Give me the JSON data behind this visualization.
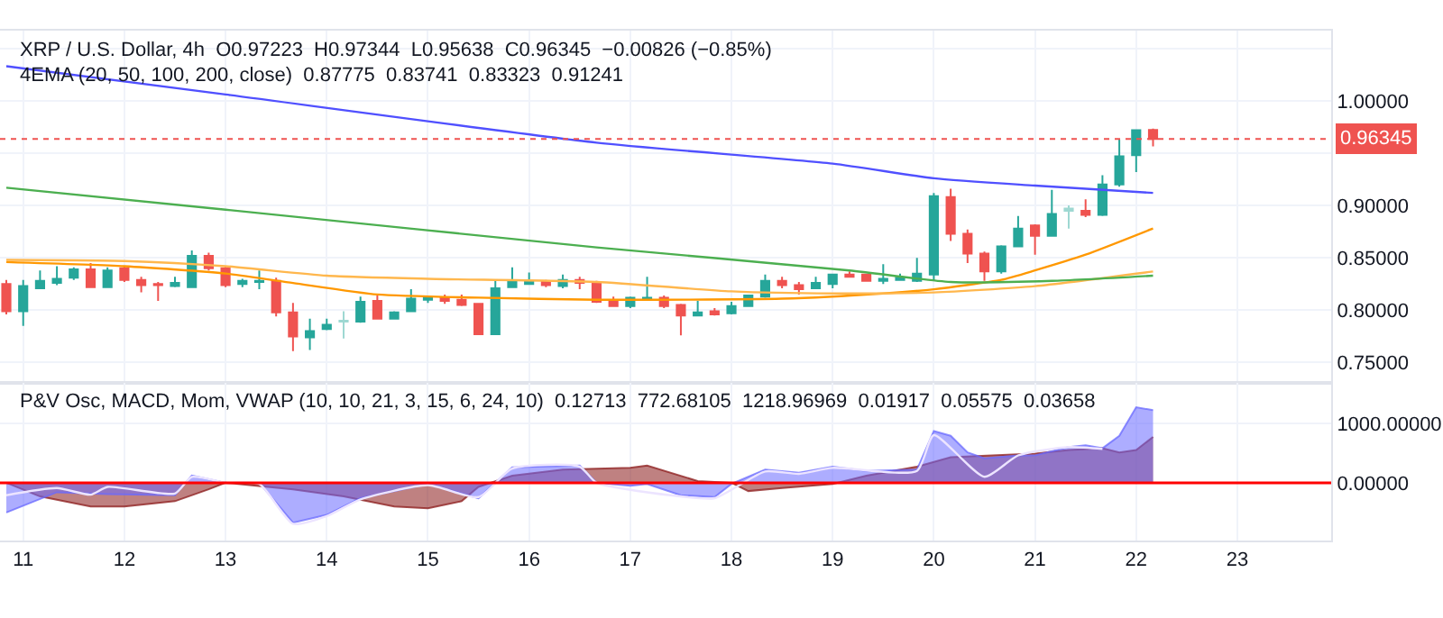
{
  "chart_data": [
    {
      "type": "candlestick",
      "title": "XRP / U.S. Dollar, 4h  O0.97223  H0.97344  L0.95638  C0.96345  −0.00826 (−0.85%)",
      "subtitle": "4EMA (20, 50, 100, 200, close)  0.87775  0.83741  0.83323  0.91241",
      "x": [
        "--12-10T20:00",
        "--12-11T00:00",
        "--12-11T04:00",
        "--12-11T08:00",
        "--12-11T12:00",
        "--12-11T16:00",
        "--12-11T20:00",
        "--12-12T00:00",
        "--12-12T04:00",
        "--12-12T08:00",
        "--12-12T12:00",
        "--12-12T16:00",
        "--12-12T20:00",
        "--12-13T00:00",
        "--12-13T04:00",
        "--12-13T08:00",
        "--12-13T12:00",
        "--12-13T16:00",
        "--12-13T20:00",
        "--12-14T00:00",
        "--12-14T04:00",
        "--12-14T08:00",
        "--12-14T12:00",
        "--12-14T16:00",
        "--12-14T20:00",
        "--12-15T00:00",
        "--12-15T04:00",
        "--12-15T08:00",
        "--12-15T12:00",
        "--12-15T16:00",
        "--12-15T20:00",
        "--12-16T00:00",
        "--12-16T04:00",
        "--12-16T08:00",
        "--12-16T12:00",
        "--12-16T16:00",
        "--12-16T20:00",
        "--12-17T00:00",
        "--12-17T04:00",
        "--12-17T08:00",
        "--12-17T12:00",
        "--12-17T16:00",
        "--12-17T20:00",
        "--12-18T00:00",
        "--12-18T04:00",
        "--12-18T08:00",
        "--12-18T12:00",
        "--12-18T16:00",
        "--12-18T20:00",
        "--12-19T00:00",
        "--12-19T04:00",
        "--12-19T08:00",
        "--12-19T12:00",
        "--12-19T16:00",
        "--12-19T20:00",
        "--12-20T00:00",
        "--12-20T04:00",
        "--12-20T08:00",
        "--12-20T12:00",
        "--12-20T16:00",
        "--12-20T20:00",
        "--12-21T00:00",
        "--12-21T04:00",
        "--12-21T08:00",
        "--12-21T12:00",
        "--12-21T16:00",
        "--12-21T20:00",
        "--12-22T00:00",
        "--12-22T04:00"
      ],
      "ohlc": [
        [
          0.825,
          0.829,
          0.796,
          0.799
        ],
        [
          0.799,
          0.829,
          0.785,
          0.823
        ],
        [
          0.821,
          0.838,
          0.82,
          0.828
        ],
        [
          0.826,
          0.842,
          0.824,
          0.83
        ],
        [
          0.831,
          0.841,
          0.829,
          0.839
        ],
        [
          0.839,
          0.845,
          0.822,
          0.822
        ],
        [
          0.822,
          0.841,
          0.822,
          0.838
        ],
        [
          0.84,
          0.842,
          0.827,
          0.829
        ],
        [
          0.829,
          0.832,
          0.817,
          0.824
        ],
        [
          0.825,
          0.827,
          0.809,
          0.824
        ],
        [
          0.823,
          0.832,
          0.822,
          0.826
        ],
        [
          0.822,
          0.857,
          0.822,
          0.852
        ],
        [
          0.852,
          0.855,
          0.838,
          0.84
        ],
        [
          0.84,
          0.842,
          0.822,
          0.824
        ],
        [
          0.825,
          0.83,
          0.822,
          0.828
        ],
        [
          0.827,
          0.838,
          0.82,
          0.828
        ],
        [
          0.828,
          0.831,
          0.794,
          0.798
        ],
        [
          0.798,
          0.807,
          0.761,
          0.775
        ],
        [
          0.774,
          0.792,
          0.762,
          0.78
        ],
        [
          0.782,
          0.792,
          0.781,
          0.786
        ],
        [
          0.789,
          0.799,
          0.773,
          0.79
        ],
        [
          0.789,
          0.813,
          0.788,
          0.808
        ],
        [
          0.809,
          0.814,
          0.791,
          0.792
        ],
        [
          0.792,
          0.799,
          0.791,
          0.798
        ],
        [
          0.799,
          0.82,
          0.799,
          0.811
        ],
        [
          0.81,
          0.814,
          0.807,
          0.812
        ],
        [
          0.812,
          0.815,
          0.806,
          0.809
        ],
        [
          0.81,
          0.815,
          0.804,
          0.805
        ],
        [
          0.806,
          0.806,
          0.777,
          0.777
        ],
        [
          0.777,
          0.829,
          0.777,
          0.821
        ],
        [
          0.822,
          0.841,
          0.822,
          0.827
        ],
        [
          0.825,
          0.836,
          0.825,
          0.827
        ],
        [
          0.827,
          0.829,
          0.822,
          0.824
        ],
        [
          0.823,
          0.834,
          0.821,
          0.829
        ],
        [
          0.829,
          0.832,
          0.82,
          0.826
        ],
        [
          0.827,
          0.828,
          0.807,
          0.808
        ],
        [
          0.809,
          0.813,
          0.804,
          0.804
        ],
        [
          0.804,
          0.813,
          0.802,
          0.812
        ],
        [
          0.811,
          0.832,
          0.811,
          0.812
        ],
        [
          0.812,
          0.814,
          0.802,
          0.804
        ],
        [
          0.805,
          0.806,
          0.776,
          0.795
        ],
        [
          0.795,
          0.809,
          0.794,
          0.798
        ],
        [
          0.799,
          0.802,
          0.795,
          0.796
        ],
        [
          0.797,
          0.808,
          0.796,
          0.804
        ],
        [
          0.804,
          0.815,
          0.803,
          0.814
        ],
        [
          0.813,
          0.834,
          0.812,
          0.828
        ],
        [
          0.828,
          0.832,
          0.821,
          0.824
        ],
        [
          0.824,
          0.827,
          0.815,
          0.82
        ],
        [
          0.821,
          0.832,
          0.82,
          0.826
        ],
        [
          0.825,
          0.835,
          0.821,
          0.834
        ],
        [
          0.834,
          0.837,
          0.831,
          0.832
        ],
        [
          0.834,
          0.835,
          0.828,
          0.828
        ],
        [
          0.828,
          0.844,
          0.825,
          0.83
        ],
        [
          0.829,
          0.835,
          0.828,
          0.831
        ],
        [
          0.828,
          0.85,
          0.827,
          0.835
        ],
        [
          0.834,
          0.912,
          0.828,
          0.909
        ],
        [
          0.908,
          0.916,
          0.866,
          0.873
        ],
        [
          0.873,
          0.877,
          0.845,
          0.854
        ],
        [
          0.854,
          0.856,
          0.828,
          0.837
        ],
        [
          0.837,
          0.862,
          0.835,
          0.861
        ],
        [
          0.861,
          0.89,
          0.861,
          0.878
        ],
        [
          0.881,
          0.882,
          0.853,
          0.871
        ],
        [
          0.871,
          0.915,
          0.871,
          0.892
        ],
        [
          0.895,
          0.9,
          0.878,
          0.897
        ],
        [
          0.895,
          0.906,
          0.889,
          0.891
        ],
        [
          0.891,
          0.929,
          0.89,
          0.92
        ],
        [
          0.92,
          0.963,
          0.918,
          0.947
        ],
        [
          0.948,
          0.972,
          0.932,
          0.972
        ],
        [
          0.97223,
          0.97344,
          0.95638,
          0.96345
        ]
      ],
      "colors": [
        "#ef5350",
        "#26a69a",
        "#26a69a",
        "#26a69a",
        "#26a69a",
        "#ef5350",
        "#26a69a",
        "#ef5350",
        "#ef5350",
        "#ef5350",
        "#26a69a",
        "#26a69a",
        "#ef5350",
        "#ef5350",
        "#26a69a",
        "#26a69a",
        "#ef5350",
        "#ef5350",
        "#26a69a",
        "#26a69a",
        "#9ed8d2",
        "#26a69a",
        "#ef5350",
        "#26a69a",
        "#26a69a",
        "#26a69a",
        "#ef5350",
        "#ef5350",
        "#ef5350",
        "#26a69a",
        "#26a69a",
        "#26a69a",
        "#ef5350",
        "#26a69a",
        "#ef5350",
        "#ef5350",
        "#ef5350",
        "#26a69a",
        "#26a69a",
        "#ef5350",
        "#ef5350",
        "#26a69a",
        "#ef5350",
        "#26a69a",
        "#26a69a",
        "#26a69a",
        "#ef5350",
        "#ef5350",
        "#26a69a",
        "#26a69a",
        "#ef5350",
        "#ef5350",
        "#26a69a",
        "#26a69a",
        "#26a69a",
        "#26a69a",
        "#ef5350",
        "#ef5350",
        "#ef5350",
        "#26a69a",
        "#26a69a",
        "#ef5350",
        "#26a69a",
        "#9ed8d2",
        "#ef5350",
        "#26a69a",
        "#26a69a",
        "#26a69a",
        "#ef5350"
      ],
      "series": [
        {
          "type": "line",
          "color": "#ff9800",
          "x": [
            "--12-10T20:00",
            "--12-12T00:00",
            "--12-13T00:00",
            "--12-13T16:00",
            "--12-14T12:00",
            "--12-15T12:00",
            "--12-16T16:00",
            "--12-18T12:00",
            "--12-19T12:00",
            "--12-20T00:00",
            "--12-20T16:00",
            "--12-21T00:00",
            "--12-21T12:00",
            "--12-22T04:00"
          ],
          "values": [
            0.846,
            0.842,
            0.835,
            0.826,
            0.815,
            0.812,
            0.81,
            0.811,
            0.816,
            0.82,
            0.829,
            0.838,
            0.853,
            0.878
          ]
        },
        {
          "type": "line",
          "color": "#ffb74d",
          "x": [
            "--12-10T20:00",
            "--12-12T00:00",
            "--12-13T00:00",
            "--12-14T00:00",
            "--12-15T00:00",
            "--12-16T16:00",
            "--12-18T00:00",
            "--12-19T00:00",
            "--12-20T00:00",
            "--12-21T00:00",
            "--12-22T04:00"
          ],
          "values": [
            0.848,
            0.847,
            0.842,
            0.833,
            0.83,
            0.827,
            0.818,
            0.816,
            0.817,
            0.823,
            0.837
          ]
        },
        {
          "type": "line",
          "color": "#4caf50",
          "x": [
            "--12-10T20:00",
            "--12-13T00:00",
            "--12-16T16:00",
            "--12-19T04:00",
            "--12-20T04:00",
            "--12-21T04:00",
            "--12-22T04:00"
          ],
          "values": [
            0.917,
            0.896,
            0.86,
            0.838,
            0.827,
            0.828,
            0.833
          ]
        },
        {
          "type": "line",
          "color": "#5050ff",
          "x": [
            "--12-10T20:00",
            "--12-13T00:00",
            "--12-16T16:00",
            "--12-19T00:00",
            "--12-20T00:00",
            "--12-21T00:00",
            "--12-22T04:00"
          ],
          "values": [
            1.033,
            1.006,
            0.96,
            0.94,
            0.926,
            0.919,
            0.912
          ]
        }
      ],
      "ref_lines": [
        {
          "axis": "y",
          "value": 0.96345,
          "label": "0.96345",
          "color": "#ef5350",
          "line_style": "dotted"
        }
      ],
      "xlim": [
        "--12-10T18:30",
        "--12-23T22:15"
      ],
      "xticks": [
        {
          "value": "--12-11",
          "label": "11"
        },
        {
          "value": "--12-12",
          "label": "12"
        },
        {
          "value": "--12-13",
          "label": "13"
        },
        {
          "value": "--12-14",
          "label": "14"
        },
        {
          "value": "--12-15",
          "label": "15"
        },
        {
          "value": "--12-16",
          "label": "16"
        },
        {
          "value": "--12-17",
          "label": "17"
        },
        {
          "value": "--12-18",
          "label": "18"
        },
        {
          "value": "--12-19",
          "label": "19"
        },
        {
          "value": "--12-20",
          "label": "20"
        },
        {
          "value": "--12-21",
          "label": "21"
        },
        {
          "value": "--12-22",
          "label": "22"
        },
        {
          "value": "--12-23",
          "label": "23"
        }
      ],
      "ylim": [
        0.731,
        1.067
      ],
      "yticks": [
        {
          "value": 0.75,
          "label": "0.75000"
        },
        {
          "value": 0.8,
          "label": "0.80000"
        },
        {
          "value": 0.85,
          "label": "0.85000"
        },
        {
          "value": 0.9,
          "label": "0.90000"
        },
        {
          "value": 0.95,
          "label": null
        },
        {
          "value": 1.0,
          "label": "1.00000"
        },
        {
          "value": 1.05,
          "label": null
        }
      ],
      "grid": true,
      "tick_labels": "y"
    },
    {
      "type": "area",
      "title": "P&V Osc, MACD, Mom, VWAP (10, 10, 21, 3, 15, 6, 24, 10)  0.12713  772.68105  1218.96969  0.01917  0.05575  0.03658",
      "series": [
        {
          "type": "area",
          "color": "#8b1a1a",
          "x": [
            "--12-10T20:00",
            "--12-11T04:00",
            "--12-11T16:00",
            "--12-12T00:00",
            "--12-12T12:00",
            "--12-12T20:00",
            "--12-13T00:00",
            "--12-13T16:00",
            "--12-14T04:00",
            "--12-14T16:00",
            "--12-15T00:00",
            "--12-15T08:00",
            "--12-15T12:00",
            "--12-15T20:00",
            "--12-16T08:00",
            "--12-17T00:00",
            "--12-17T04:00",
            "--12-17T16:00",
            "--12-18T00:00",
            "--12-18T04:00",
            "--12-18T12:00",
            "--12-19T00:00",
            "--12-19T08:00",
            "--12-19T20:00",
            "--12-20T04:00",
            "--12-20T20:00",
            "--12-21T00:00",
            "--12-21T08:00",
            "--12-21T16:00",
            "--12-21T20:00",
            "--12-22T00:00",
            "--12-22T04:00"
          ],
          "values": [
            0,
            -230,
            -400,
            -400,
            -310,
            -110,
            0,
            -110,
            -230,
            -400,
            -430,
            -310,
            -70,
            120,
            220,
            250,
            290,
            30,
            0,
            -140,
            -90,
            -20,
            120,
            270,
            430,
            480,
            490,
            550,
            580,
            510,
            550,
            770
          ]
        },
        {
          "type": "area",
          "color": "#6a6aff",
          "x": [
            "--12-10T20:00",
            "--12-11T08:00",
            "--12-11T20:00",
            "--12-12T12:00",
            "--12-12T16:00",
            "--12-13T00:00",
            "--12-13T08:00",
            "--12-13T16:00",
            "--12-14T00:00",
            "--12-14T08:00",
            "--12-15T00:00",
            "--12-15T12:00",
            "--12-15T20:00",
            "--12-16T12:00",
            "--12-16T16:00",
            "--12-17T00:00",
            "--12-17T04:00",
            "--12-17T12:00",
            "--12-17T20:00",
            "--12-18T00:00",
            "--12-18T08:00",
            "--12-18T16:00",
            "--12-19T00:00",
            "--12-19T08:00",
            "--12-19T20:00",
            "--12-20T00:00",
            "--12-20T04:00",
            "--12-20T08:00",
            "--12-20T12:00",
            "--12-20T20:00",
            "--12-21T00:00",
            "--12-21T08:00",
            "--12-21T12:00",
            "--12-21T16:00",
            "--12-21T20:00",
            "--12-22T00:00",
            "--12-22T04:00"
          ],
          "values": [
            -500,
            -160,
            -190,
            -210,
            120,
            0,
            0,
            -670,
            -540,
            -260,
            -20,
            -260,
            260,
            290,
            0,
            -50,
            -20,
            -210,
            -240,
            -20,
            220,
            170,
            270,
            200,
            220,
            870,
            790,
            510,
            410,
            460,
            460,
            600,
            630,
            580,
            790,
            1270,
            1220
          ]
        },
        {
          "type": "line",
          "color": "#ece4ff",
          "x": [
            "--12-10T20:00",
            "--12-11T08:00",
            "--12-11T16:00",
            "--12-11T20:00",
            "--12-12T12:00",
            "--12-12T16:00",
            "--12-13T00:00",
            "--12-13T08:00",
            "--12-13T16:00",
            "--12-14T00:00",
            "--12-14T08:00",
            "--12-15T00:00",
            "--12-15T12:00",
            "--12-15T20:00",
            "--12-16T12:00",
            "--12-16T16:00",
            "--12-17T12:00",
            "--12-17T20:00",
            "--12-18T08:00",
            "--12-18T16:00",
            "--12-19T00:00",
            "--12-19T20:00",
            "--12-20T00:00",
            "--12-20T12:00",
            "--12-20T20:00",
            "--12-21T08:00",
            "--12-21T16:00"
          ],
          "values": [
            -210,
            -90,
            -200,
            -70,
            -180,
            100,
            0,
            -20,
            -690,
            -560,
            -280,
            -40,
            -240,
            240,
            270,
            0,
            -230,
            -260,
            190,
            150,
            250,
            200,
            800,
            100,
            460,
            600,
            570
          ]
        }
      ],
      "ref_lines": [
        {
          "axis": "y",
          "value": 0,
          "color": "#ff0000"
        }
      ],
      "xlim": [
        "--12-10T18:30",
        "--12-23T22:15"
      ],
      "xticks": [
        {
          "value": "--12-11",
          "label": "11"
        },
        {
          "value": "--12-12",
          "label": "12"
        },
        {
          "value": "--12-13",
          "label": "13"
        },
        {
          "value": "--12-14",
          "label": "14"
        },
        {
          "value": "--12-15",
          "label": "15"
        },
        {
          "value": "--12-16",
          "label": "16"
        },
        {
          "value": "--12-17",
          "label": "17"
        },
        {
          "value": "--12-18",
          "label": "18"
        },
        {
          "value": "--12-19",
          "label": "19"
        },
        {
          "value": "--12-20",
          "label": "20"
        },
        {
          "value": "--12-21",
          "label": "21"
        },
        {
          "value": "--12-22",
          "label": "22"
        },
        {
          "value": "--12-23",
          "label": "23"
        }
      ],
      "ylim": [
        -971,
        1686
      ],
      "yticks": [
        {
          "value": 0,
          "label": "0.00000"
        },
        {
          "value": 1000,
          "label": "1000.00000"
        }
      ],
      "grid": true
    }
  ]
}
